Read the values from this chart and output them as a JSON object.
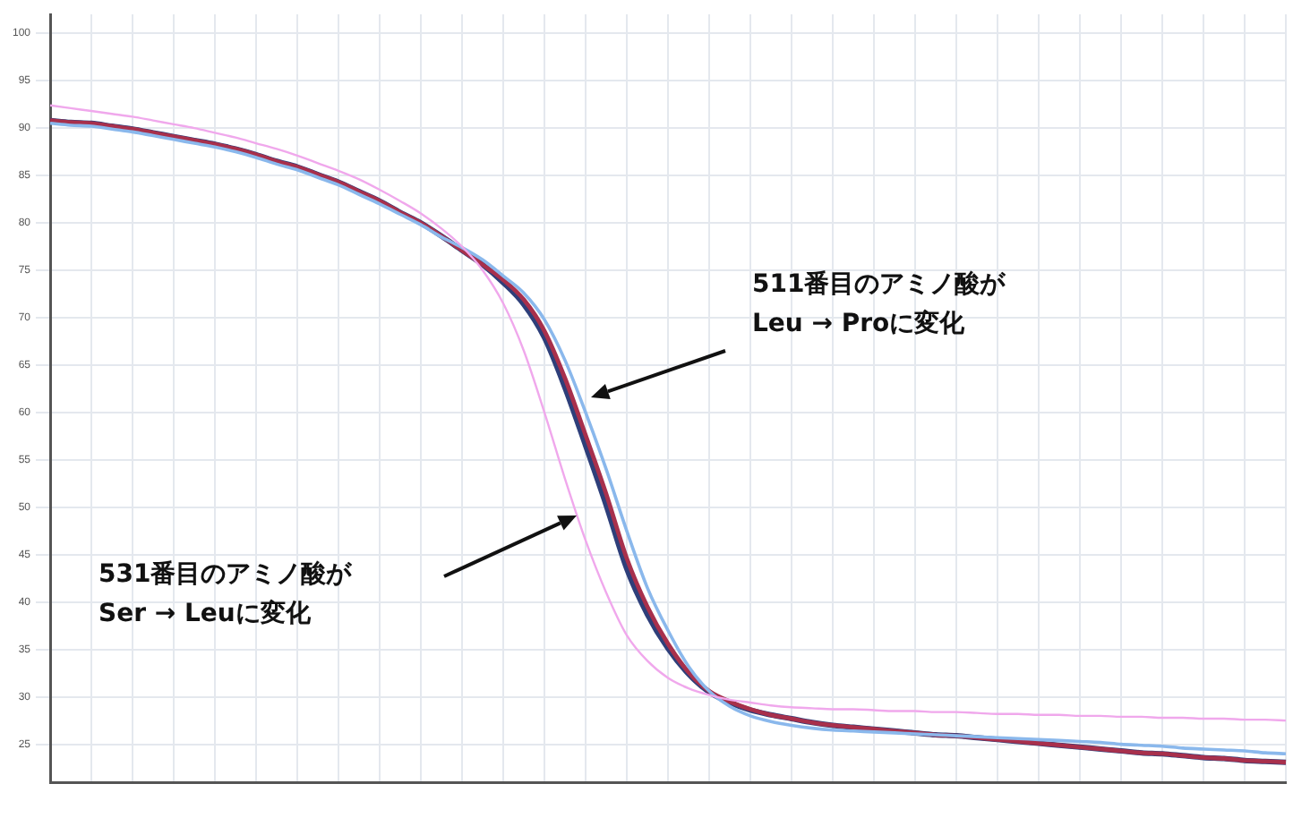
{
  "chart_data": {
    "type": "line",
    "categories": [
      null,
      null,
      null,
      null,
      null,
      null,
      null,
      null,
      null,
      null,
      null,
      null,
      null,
      null,
      null,
      null,
      null,
      null,
      null,
      null,
      null,
      null,
      null,
      null,
      null,
      null,
      null,
      null,
      null,
      null,
      null,
      null,
      null,
      null,
      null,
      null,
      null,
      null,
      null,
      null,
      null,
      null,
      null,
      null,
      null,
      null,
      null,
      null,
      null,
      null,
      null,
      null,
      null,
      null,
      null,
      null,
      null,
      null,
      null,
      null,
      null
    ],
    "series": [
      {
        "color": "#f0a8ec",
        "values": [
          92.4,
          92.1,
          91.8,
          91.5,
          91.2,
          90.8,
          90.4,
          90.0,
          89.5,
          89.0,
          88.4,
          87.8,
          87.1,
          86.3,
          85.5,
          84.6,
          83.5,
          82.3,
          81.0,
          79.4,
          77.5,
          75.0,
          71.5,
          66.5,
          60.0,
          53.0,
          46.5,
          41.0,
          36.5,
          33.8,
          32.0,
          30.9,
          30.2,
          29.7,
          29.4,
          29.1,
          28.9,
          28.8,
          28.7,
          28.7,
          28.6,
          28.5,
          28.5,
          28.4,
          28.4,
          28.3,
          28.2,
          28.2,
          28.1,
          28.1,
          28.0,
          28.0,
          27.9,
          27.9,
          27.8,
          27.8,
          27.7,
          27.7,
          27.6,
          27.6,
          27.5
        ]
      },
      {
        "color": "#8ab8ec",
        "values": [
          90.5,
          90.3,
          90.2,
          89.9,
          89.6,
          89.2,
          88.8,
          88.4,
          88.0,
          87.5,
          86.9,
          86.2,
          85.6,
          84.8,
          84.0,
          83.0,
          82.0,
          80.9,
          79.8,
          78.5,
          77.4,
          76.1,
          74.4,
          72.6,
          69.8,
          65.5,
          60.0,
          54.0,
          47.5,
          41.5,
          37.0,
          33.2,
          30.6,
          29.0,
          28.0,
          27.4,
          27.0,
          26.7,
          26.5,
          26.4,
          26.3,
          26.2,
          26.1,
          26.0,
          25.9,
          25.8,
          25.7,
          25.6,
          25.5,
          25.4,
          25.3,
          25.2,
          25.0,
          24.9,
          24.8,
          24.6,
          24.5,
          24.4,
          24.3,
          24.1,
          24.0
        ]
      },
      {
        "color": "#a8304c",
        "values": [
          90.8,
          90.6,
          90.5,
          90.2,
          89.9,
          89.5,
          89.1,
          88.7,
          88.3,
          87.8,
          87.2,
          86.5,
          85.9,
          85.1,
          84.3,
          83.3,
          82.3,
          81.1,
          80.0,
          78.6,
          77.1,
          75.6,
          74.0,
          71.9,
          68.6,
          63.6,
          57.6,
          51.4,
          44.6,
          39.5,
          35.6,
          32.6,
          30.6,
          29.5,
          28.7,
          28.1,
          27.7,
          27.3,
          27.0,
          26.8,
          26.6,
          26.4,
          26.2,
          26.0,
          25.9,
          25.7,
          25.5,
          25.3,
          25.1,
          24.9,
          24.7,
          24.5,
          24.3,
          24.1,
          24.0,
          23.8,
          23.6,
          23.5,
          23.3,
          23.2,
          23.1
        ]
      },
      {
        "color": "#2e3f7a",
        "values": [
          90.8,
          90.6,
          90.5,
          90.2,
          89.9,
          89.5,
          89.1,
          88.7,
          88.3,
          87.8,
          87.2,
          86.5,
          85.9,
          85.1,
          84.3,
          83.3,
          82.3,
          81.1,
          80.0,
          78.6,
          77.1,
          75.6,
          73.7,
          71.4,
          67.9,
          62.6,
          56.5,
          50.2,
          43.5,
          38.7,
          35.1,
          32.4,
          30.5,
          29.4,
          28.6,
          28.1,
          27.7,
          27.3,
          27.0,
          26.8,
          26.6,
          26.4,
          26.2,
          26.0,
          25.9,
          25.7,
          25.5,
          25.3,
          25.1,
          24.9,
          24.7,
          24.5,
          24.3,
          24.1,
          24.0,
          23.8,
          23.6,
          23.5,
          23.3,
          23.2,
          23.1
        ]
      }
    ],
    "ylim": [
      21,
      102
    ],
    "yticks": [
      25,
      30,
      35,
      40,
      45,
      50,
      55,
      60,
      65,
      70,
      75,
      80,
      85,
      90,
      95,
      100
    ],
    "grid": true,
    "tick_labels": "y",
    "marker": "none",
    "annotations": [
      "511番目のアミノ酸が\nLeu → Proに変化",
      "531番目のアミノ酸が\nSer → Leuに変化"
    ]
  }
}
